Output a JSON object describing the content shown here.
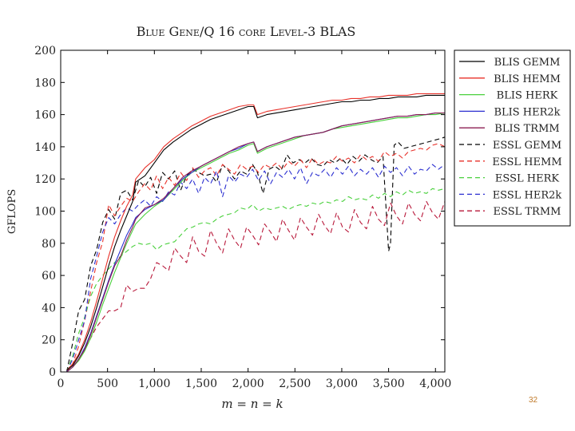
{
  "slide_number": "32",
  "chart_data": {
    "type": "line",
    "title": "Blue Gene/Q 16 core Level-3 BLAS",
    "xlabel": "m = n = k",
    "ylabel": "GFLOPS",
    "xlim": [
      0,
      4100
    ],
    "ylim": [
      0,
      200
    ],
    "xticks": [
      0,
      500,
      1000,
      1500,
      2000,
      2500,
      3000,
      3500,
      4000
    ],
    "xtick_labels": [
      "0",
      "500",
      "1,000",
      "1,500",
      "2,000",
      "2,500",
      "3,000",
      "3,500",
      "4,000"
    ],
    "yticks": [
      0,
      20,
      40,
      60,
      80,
      100,
      120,
      140,
      160,
      180,
      200
    ],
    "ytick_labels": [
      "0",
      "20",
      "40",
      "60",
      "80",
      "100",
      "120",
      "140",
      "160",
      "180",
      "200"
    ],
    "legend_position": "outside-right",
    "series": [
      {
        "name": "BLIS GEMM",
        "color": "#000000",
        "dash": "solid",
        "x": [
          64,
          128,
          192,
          256,
          320,
          384,
          448,
          512,
          576,
          640,
          704,
          768,
          800,
          900,
          1000,
          1100,
          1200,
          1300,
          1400,
          1500,
          1600,
          1700,
          1800,
          1900,
          2000,
          2060,
          2100,
          2200,
          2300,
          2400,
          2500,
          2600,
          2700,
          2800,
          2900,
          3000,
          3100,
          3200,
          3300,
          3400,
          3500,
          3600,
          3700,
          3800,
          3900,
          4000,
          4100
        ],
        "y": [
          1,
          4,
          10,
          18,
          28,
          40,
          53,
          66,
          78,
          88,
          97,
          106,
          118,
          122,
          130,
          138,
          143,
          147,
          151,
          154,
          157,
          159,
          161,
          163,
          165,
          165,
          158,
          160,
          161,
          162,
          163,
          164,
          165,
          166,
          167,
          168,
          168,
          169,
          169,
          170,
          170,
          171,
          171,
          171,
          172,
          172,
          172
        ]
      },
      {
        "name": "BLIS HEMM",
        "color": "#e8312a",
        "dash": "solid",
        "x": [
          64,
          128,
          192,
          256,
          320,
          384,
          448,
          512,
          576,
          640,
          704,
          768,
          800,
          900,
          1000,
          1100,
          1200,
          1300,
          1400,
          1500,
          1600,
          1700,
          1800,
          1900,
          2000,
          2060,
          2100,
          2200,
          2300,
          2400,
          2500,
          2600,
          2700,
          2800,
          2900,
          3000,
          3100,
          3200,
          3300,
          3400,
          3500,
          3600,
          3700,
          3800,
          3900,
          4000,
          4100
        ],
        "y": [
          1,
          5,
          11,
          20,
          31,
          44,
          58,
          72,
          84,
          94,
          103,
          110,
          120,
          127,
          132,
          140,
          145,
          149,
          153,
          156,
          159,
          161,
          163,
          165,
          166,
          166,
          160,
          162,
          163,
          164,
          165,
          166,
          167,
          168,
          169,
          169,
          170,
          170,
          171,
          171,
          172,
          172,
          172,
          173,
          173,
          173,
          173
        ]
      },
      {
        "name": "BLIS HERK",
        "color": "#49d03c",
        "dash": "solid",
        "x": [
          64,
          128,
          192,
          256,
          320,
          384,
          448,
          512,
          576,
          640,
          704,
          768,
          800,
          900,
          1000,
          1100,
          1200,
          1300,
          1400,
          1500,
          1600,
          1700,
          1800,
          1900,
          2000,
          2060,
          2100,
          2200,
          2300,
          2400,
          2500,
          2600,
          2700,
          2800,
          2900,
          3000,
          3100,
          3200,
          3300,
          3400,
          3500,
          3600,
          3700,
          3800,
          3900,
          4000,
          4100
        ],
        "y": [
          0,
          3,
          7,
          13,
          21,
          31,
          42,
          52,
          62,
          71,
          80,
          88,
          92,
          98,
          103,
          107,
          113,
          119,
          124,
          127,
          130,
          133,
          136,
          138,
          141,
          142,
          136,
          139,
          141,
          143,
          145,
          147,
          148,
          149,
          151,
          152,
          153,
          154,
          155,
          156,
          157,
          158,
          158,
          159,
          160,
          160,
          161
        ]
      },
      {
        "name": "BLIS HER2k",
        "color": "#2a2ed0",
        "dash": "solid",
        "x": [
          64,
          128,
          192,
          256,
          320,
          384,
          448,
          512,
          576,
          640,
          704,
          768,
          800,
          900,
          1000,
          1100,
          1200,
          1300,
          1400,
          1500,
          1600,
          1700,
          1800,
          1900,
          2000,
          2060,
          2100,
          2200,
          2300,
          2400,
          2500,
          2600,
          2700,
          2800,
          2900,
          3000,
          3100,
          3200,
          3300,
          3400,
          3500,
          3600,
          3700,
          3800,
          3900,
          4000,
          4100
        ],
        "y": [
          0,
          3,
          8,
          15,
          24,
          35,
          46,
          57,
          67,
          76,
          85,
          92,
          96,
          101,
          104,
          107,
          114,
          120,
          124,
          128,
          131,
          134,
          137,
          139,
          142,
          143,
          137,
          140,
          142,
          144,
          146,
          147,
          148,
          149,
          151,
          153,
          154,
          155,
          156,
          157,
          158,
          159,
          159,
          160,
          160,
          161,
          161
        ]
      },
      {
        "name": "BLIS TRMM",
        "color": "#8b1e52",
        "dash": "solid",
        "x": [
          64,
          128,
          192,
          256,
          320,
          384,
          448,
          512,
          576,
          640,
          704,
          768,
          800,
          900,
          1000,
          1100,
          1200,
          1300,
          1400,
          1500,
          1600,
          1700,
          1800,
          1900,
          2000,
          2060,
          2100,
          2200,
          2300,
          2400,
          2500,
          2600,
          2700,
          2800,
          2900,
          3000,
          3100,
          3200,
          3300,
          3400,
          3500,
          3600,
          3700,
          3800,
          3900,
          4000,
          4100
        ],
        "y": [
          0,
          3,
          8,
          14,
          23,
          34,
          45,
          56,
          66,
          72,
          82,
          90,
          95,
          102,
          104,
          108,
          114,
          121,
          125,
          128,
          131,
          134,
          137,
          140,
          142,
          143,
          137,
          140,
          142,
          144,
          146,
          147,
          148,
          149,
          151,
          153,
          154,
          155,
          156,
          157,
          158,
          159,
          159,
          160,
          160,
          161,
          161
        ]
      },
      {
        "name": "ESSL GEMM",
        "color": "#000000",
        "dash": "6,4",
        "x": [
          64,
          128,
          192,
          256,
          320,
          384,
          448,
          512,
          576,
          640,
          704,
          768,
          832,
          896,
          960,
          1024,
          1088,
          1152,
          1216,
          1280,
          1344,
          1408,
          1472,
          1536,
          1600,
          1664,
          1728,
          1792,
          1856,
          1920,
          1984,
          2048,
          2100,
          2160,
          2224,
          2288,
          2352,
          2416,
          2480,
          2544,
          2608,
          2672,
          2736,
          2800,
          2864,
          2928,
          2992,
          3056,
          3120,
          3184,
          3248,
          3312,
          3376,
          3440,
          3500,
          3520,
          3560,
          3600,
          3664,
          3728,
          3792,
          3856,
          3920,
          3984,
          4048,
          4100
        ],
        "y": [
          0,
          18,
          38,
          45,
          66,
          76,
          93,
          101,
          95,
          111,
          113,
          107,
          119,
          115,
          121,
          111,
          124,
          120,
          125,
          113,
          122,
          126,
          124,
          122,
          123,
          118,
          129,
          125,
          120,
          125,
          123,
          129,
          124,
          111,
          126,
          128,
          125,
          135,
          130,
          132,
          130,
          133,
          129,
          128,
          132,
          130,
          133,
          129,
          134,
          131,
          135,
          132,
          130,
          134,
          75,
          80,
          141,
          143,
          139,
          140,
          141,
          142,
          143,
          144,
          145,
          146
        ]
      },
      {
        "name": "ESSL HEMM",
        "color": "#e8312a",
        "dash": "6,4",
        "x": [
          64,
          128,
          192,
          256,
          320,
          384,
          448,
          512,
          576,
          640,
          704,
          768,
          832,
          896,
          960,
          1024,
          1088,
          1152,
          1216,
          1280,
          1344,
          1408,
          1472,
          1536,
          1600,
          1664,
          1728,
          1792,
          1856,
          1920,
          1984,
          2048,
          2112,
          2176,
          2240,
          2304,
          2368,
          2432,
          2496,
          2560,
          2624,
          2688,
          2752,
          2816,
          2880,
          2944,
          3008,
          3072,
          3136,
          3200,
          3264,
          3328,
          3392,
          3456,
          3520,
          3584,
          3648,
          3712,
          3776,
          3840,
          3904,
          3968,
          4032,
          4100
        ],
        "y": [
          0,
          5,
          16,
          32,
          50,
          68,
          81,
          104,
          97,
          103,
          108,
          106,
          112,
          117,
          113,
          122,
          114,
          121,
          116,
          124,
          119,
          127,
          121,
          125,
          127,
          122,
          129,
          126,
          123,
          129,
          126,
          128,
          124,
          129,
          127,
          130,
          126,
          131,
          128,
          132,
          127,
          133,
          129,
          131,
          130,
          134,
          131,
          133,
          130,
          135,
          132,
          134,
          131,
          137,
          134,
          136,
          133,
          137,
          138,
          139,
          138,
          141,
          142,
          140
        ]
      },
      {
        "name": "ESSL HERK",
        "color": "#49d03c",
        "dash": "6,4",
        "x": [
          64,
          128,
          192,
          256,
          320,
          384,
          448,
          512,
          576,
          640,
          704,
          768,
          832,
          896,
          960,
          1024,
          1088,
          1152,
          1216,
          1280,
          1344,
          1408,
          1472,
          1536,
          1600,
          1664,
          1728,
          1792,
          1856,
          1920,
          1984,
          2048,
          2112,
          2176,
          2240,
          2304,
          2368,
          2432,
          2496,
          2560,
          2624,
          2688,
          2752,
          2816,
          2880,
          2944,
          3008,
          3072,
          3136,
          3200,
          3264,
          3328,
          3392,
          3456,
          3520,
          3584,
          3648,
          3712,
          3776,
          3840,
          3904,
          3968,
          4032,
          4100
        ],
        "y": [
          0,
          10,
          24,
          34,
          47,
          55,
          60,
          64,
          68,
          72,
          75,
          78,
          80,
          79,
          80,
          76,
          79,
          80,
          81,
          85,
          89,
          90,
          92,
          93,
          92,
          95,
          97,
          98,
          99,
          102,
          101,
          104,
          100,
          102,
          101,
          102,
          103,
          101,
          103,
          104,
          103,
          105,
          104,
          106,
          105,
          107,
          106,
          109,
          107,
          108,
          107,
          110,
          108,
          111,
          109,
          112,
          110,
          113,
          111,
          112,
          111,
          114,
          113,
          114
        ]
      },
      {
        "name": "ESSL HER2k",
        "color": "#2a2ed0",
        "dash": "6,4",
        "x": [
          64,
          128,
          192,
          256,
          320,
          384,
          448,
          512,
          576,
          640,
          704,
          768,
          832,
          896,
          960,
          1024,
          1088,
          1152,
          1216,
          1280,
          1344,
          1408,
          1472,
          1536,
          1600,
          1664,
          1728,
          1792,
          1856,
          1920,
          1984,
          2048,
          2112,
          2176,
          2240,
          2304,
          2368,
          2432,
          2496,
          2560,
          2624,
          2688,
          2752,
          2816,
          2880,
          2944,
          3008,
          3072,
          3136,
          3200,
          3264,
          3328,
          3392,
          3456,
          3520,
          3584,
          3648,
          3712,
          3776,
          3840,
          3904,
          3968,
          4032,
          4100
        ],
        "y": [
          0,
          8,
          20,
          32,
          58,
          72,
          87,
          96,
          92,
          98,
          102,
          100,
          104,
          107,
          103,
          109,
          106,
          112,
          110,
          118,
          114,
          120,
          111,
          121,
          117,
          125,
          109,
          122,
          118,
          123,
          121,
          126,
          119,
          125,
          117,
          124,
          121,
          126,
          120,
          127,
          117,
          124,
          122,
          126,
          121,
          127,
          123,
          128,
          122,
          126,
          123,
          127,
          121,
          128,
          124,
          127,
          122,
          128,
          123,
          126,
          125,
          129,
          126,
          129
        ]
      },
      {
        "name": "ESSL TRMM",
        "color": "#b8183a",
        "dash": "6,4",
        "x": [
          64,
          128,
          192,
          256,
          320,
          384,
          448,
          512,
          576,
          640,
          704,
          768,
          832,
          896,
          960,
          1024,
          1088,
          1152,
          1216,
          1280,
          1344,
          1408,
          1472,
          1536,
          1600,
          1664,
          1728,
          1792,
          1856,
          1920,
          1984,
          2048,
          2112,
          2176,
          2240,
          2304,
          2368,
          2432,
          2496,
          2560,
          2624,
          2688,
          2752,
          2816,
          2880,
          2944,
          3008,
          3072,
          3136,
          3200,
          3264,
          3328,
          3392,
          3456,
          3520,
          3584,
          3648,
          3712,
          3776,
          3840,
          3904,
          3968,
          4032,
          4100
        ],
        "y": [
          0,
          3,
          8,
          14,
          21,
          28,
          33,
          38,
          38,
          40,
          54,
          50,
          52,
          52,
          58,
          68,
          66,
          63,
          77,
          72,
          68,
          84,
          75,
          72,
          88,
          80,
          74,
          89,
          82,
          77,
          90,
          85,
          79,
          92,
          87,
          81,
          95,
          88,
          82,
          96,
          90,
          85,
          98,
          91,
          86,
          99,
          90,
          87,
          101,
          93,
          89,
          103,
          95,
          91,
          105,
          97,
          92,
          105,
          98,
          94,
          106,
          99,
          95,
          106
        ]
      }
    ]
  }
}
